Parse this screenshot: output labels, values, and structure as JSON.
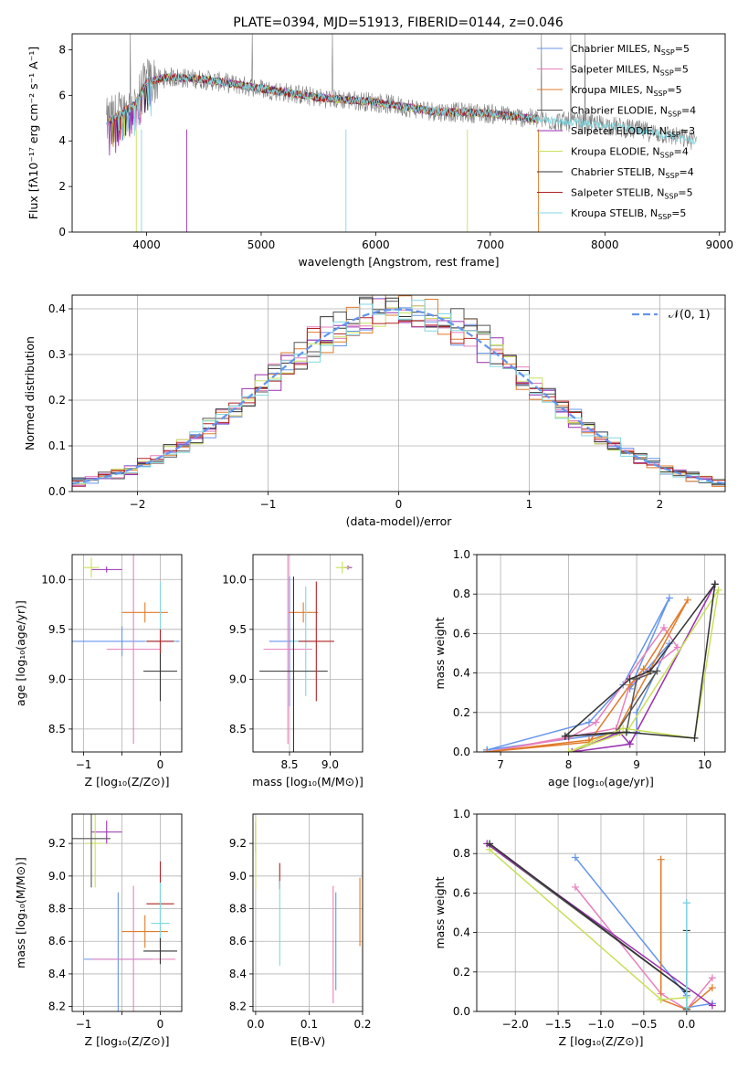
{
  "title": "PLATE=0394, MJD=51913, FIBERID=0144, z=0.046",
  "colors": {
    "c1": "#6495ed",
    "c2": "#e87fbe",
    "c3": "#e07b2a",
    "c4": "#555555",
    "c5": "#9a2fb0",
    "c6": "#c7e05a",
    "c7": "#333333",
    "c8": "#b22222",
    "c9": "#80d8e0"
  },
  "chart_data": [
    {
      "id": "spectrum",
      "type": "line",
      "xlabel": "wavelength [Angstrom, rest frame]",
      "ylabel": "Flux [fλ10⁻¹⁷ erg cm⁻² s⁻¹ A⁻¹]",
      "xlim": [
        3350,
        9050
      ],
      "ylim": [
        0,
        8.7
      ],
      "xticks": [
        4000,
        5000,
        6000,
        7000,
        8000,
        9000
      ],
      "yticks": [
        0,
        2,
        4,
        6,
        8
      ],
      "legend_position": "top-right",
      "series": [
        {
          "name": "Chabrier MILES, N_SSP=5",
          "label_main": "Chabrier MILES, N",
          "label_sub": "SSP",
          "label_tail": "=5",
          "color": "#6495ed"
        },
        {
          "name": "Salpeter MILES, N_SSP=5",
          "label_main": "Salpeter MILES, N",
          "label_sub": "SSP",
          "label_tail": "=5",
          "color": "#e87fbe"
        },
        {
          "name": "Kroupa MILES, N_SSP=5",
          "label_main": "Kroupa MILES, N",
          "label_sub": "SSP",
          "label_tail": "=5",
          "color": "#e07b2a"
        },
        {
          "name": "Chabrier ELODIE, N_SSP=4",
          "label_main": "Chabrier ELODIE, N",
          "label_sub": "SSP",
          "label_tail": "=4",
          "color": "#555555"
        },
        {
          "name": "Salpeter ELODIE, N_SSP=3",
          "label_main": "Salpeter ELODIE, N",
          "label_sub": "SSP",
          "label_tail": "=3",
          "color": "#9a2fb0"
        },
        {
          "name": "Kroupa ELODIE, N_SSP=4",
          "label_main": "Kroupa ELODIE, N",
          "label_sub": "SSP",
          "label_tail": "=4",
          "color": "#c7e05a"
        },
        {
          "name": "Chabrier STELIB, N_SSP=4",
          "label_main": "Chabrier STELIB, N",
          "label_sub": "SSP",
          "label_tail": "=4",
          "color": "#333333"
        },
        {
          "name": "Salpeter STELIB, N_SSP=5",
          "label_main": "Salpeter STELIB, N",
          "label_sub": "SSP",
          "label_tail": "=5",
          "color": "#b22222"
        },
        {
          "name": "Kroupa STELIB, N_SSP=5",
          "label_main": "Kroupa STELIB, N",
          "label_sub": "SSP",
          "label_tail": "=5",
          "color": "#80d8e0"
        }
      ],
      "data_trend": {
        "x": [
          3650,
          3900,
          4000,
          4200,
          4500,
          5000,
          5500,
          6000,
          6500,
          7000,
          7500,
          8000,
          8500,
          8800
        ],
        "y": [
          4.8,
          5.6,
          6.6,
          6.8,
          6.7,
          6.3,
          5.9,
          5.7,
          5.3,
          5.2,
          4.9,
          4.7,
          4.3,
          4.0
        ]
      }
    },
    {
      "id": "residuals",
      "type": "histogram",
      "xlabel": "(data-model)/error",
      "ylabel": "Normed distribution",
      "xlim": [
        -2.5,
        2.5
      ],
      "ylim": [
        0,
        0.43
      ],
      "xticks": [
        -2,
        -1,
        0,
        1,
        2
      ],
      "yticks": [
        0.0,
        0.1,
        0.2,
        0.3,
        0.4
      ],
      "grid": true,
      "legend_position": "top-right",
      "curve_label": "𝒩(0, 1)",
      "bin_width": 0.1
    },
    {
      "id": "age-vs-z",
      "type": "scatter",
      "xlabel": "Z [log₁₀(Z/Z⊙)]",
      "ylabel": "age  [log₁₀(age/yr)]",
      "xlim": [
        -1.15,
        0.28
      ],
      "ylim": [
        8.27,
        10.25
      ],
      "xticks": [
        -1,
        -0.5,
        0
      ],
      "xticklabels": [
        "−1",
        "",
        "0"
      ],
      "yticks": [
        8.5,
        9.0,
        9.5,
        10.0
      ],
      "grid": true,
      "points": [
        {
          "x": -0.7,
          "y": 10.1,
          "xerr": 0.2,
          "yerr": 0.03,
          "color": "#9a2fb0"
        },
        {
          "x": -0.9,
          "y": 10.12,
          "xerr": 0.1,
          "yerr": 0.1,
          "color": "#c7e05a"
        },
        {
          "x": -0.5,
          "y": 9.38,
          "xerr": 0.75,
          "yerr": 0.15,
          "color": "#6495ed"
        },
        {
          "x": -0.35,
          "y": 9.3,
          "xerr": 0.35,
          "yerr": 0.95,
          "color": "#e87fbe"
        },
        {
          "x": -0.2,
          "y": 9.67,
          "xerr": 0.3,
          "yerr": 0.1,
          "color": "#e07b2a"
        },
        {
          "x": 0.0,
          "y": 9.38,
          "xerr": 0.2,
          "yerr": 0.6,
          "color": "#80d8e0"
        },
        {
          "x": 0.0,
          "y": 9.08,
          "xerr": 0.22,
          "yerr": 0.3,
          "color": "#333333"
        },
        {
          "x": 0.0,
          "y": 9.38,
          "xerr": 0.18,
          "yerr": 0.12,
          "color": "#b22222"
        }
      ]
    },
    {
      "id": "age-vs-mass",
      "type": "scatter",
      "xlabel": "mass [log₁₀(M/M⊙)]",
      "xlim": [
        8.05,
        9.4
      ],
      "ylim": [
        8.27,
        10.25
      ],
      "xticks": [
        8.5,
        9.0
      ],
      "yticks": [
        8.5,
        9.0,
        9.5,
        10.0
      ],
      "grid": true,
      "points": [
        {
          "x": 9.22,
          "y": 10.12,
          "xerr": 0.05,
          "yerr": 0.02,
          "color": "#9a2fb0"
        },
        {
          "x": 9.15,
          "y": 10.12,
          "xerr": 0.08,
          "yerr": 0.06,
          "color": "#c7e05a"
        },
        {
          "x": 8.5,
          "y": 9.38,
          "xerr": 0.25,
          "yerr": 0.65,
          "color": "#6495ed"
        },
        {
          "x": 8.48,
          "y": 9.3,
          "xerr": 0.3,
          "yerr": 0.95,
          "color": "#e87fbe"
        },
        {
          "x": 8.67,
          "y": 9.67,
          "xerr": 0.18,
          "yerr": 0.1,
          "color": "#e07b2a"
        },
        {
          "x": 8.7,
          "y": 9.38,
          "xerr": 0.18,
          "yerr": 0.55,
          "color": "#80d8e0"
        },
        {
          "x": 8.55,
          "y": 9.08,
          "xerr": 0.42,
          "yerr": 0.95,
          "color": "#333333"
        },
        {
          "x": 8.83,
          "y": 9.38,
          "xerr": 0.22,
          "yerr": 0.6,
          "color": "#b22222"
        }
      ]
    },
    {
      "id": "weight-vs-age",
      "type": "line",
      "xlabel": "age  [log₁₀(age/yr)]",
      "ylabel": "mass weight",
      "xlim": [
        6.65,
        10.3
      ],
      "ylim": [
        0,
        1.0
      ],
      "xticks": [
        7,
        8,
        9,
        10
      ],
      "yticks": [
        0.0,
        0.2,
        0.4,
        0.6,
        0.8,
        1.0
      ],
      "grid": true,
      "series": [
        {
          "color": "#6495ed",
          "x": [
            6.8,
            8.3,
            8.8,
            9.48,
            8.9,
            9.48,
            9.0,
            9.0,
            8.3,
            6.8
          ],
          "y": [
            0.01,
            0.15,
            0.34,
            0.78,
            0.32,
            0.55,
            0.2,
            0.1,
            0.08,
            0.01
          ]
        },
        {
          "color": "#e87fbe",
          "x": [
            6.8,
            8.0,
            8.4,
            9.4,
            9.6,
            8.9,
            8.7,
            6.8
          ],
          "y": [
            0.0,
            0.07,
            0.15,
            0.63,
            0.53,
            0.34,
            0.12,
            0.0
          ]
        },
        {
          "color": "#e07b2a",
          "x": [
            6.8,
            8.3,
            8.7,
            9.75,
            9.1,
            8.9,
            8.3,
            6.8
          ],
          "y": [
            0.0,
            0.06,
            0.1,
            0.77,
            0.42,
            0.34,
            0.05,
            0.0
          ]
        },
        {
          "color": "#555555",
          "x": [
            8.0,
            8.7,
            9.3,
            9.0,
            8.85,
            8.0
          ],
          "y": [
            0.08,
            0.1,
            0.41,
            0.37,
            0.1,
            0.08
          ]
        },
        {
          "color": "#9a2fb0",
          "x": [
            8.05,
            8.75,
            8.9,
            10.15,
            8.9,
            8.05
          ],
          "y": [
            0.0,
            0.1,
            0.04,
            0.85,
            0.04,
            0.0
          ]
        },
        {
          "color": "#c7e05a",
          "x": [
            8.0,
            8.8,
            9.85,
            10.2,
            8.85,
            8.0
          ],
          "y": [
            0.0,
            0.12,
            0.07,
            0.82,
            0.1,
            0.0
          ]
        },
        {
          "color": "#333333",
          "x": [
            7.95,
            8.85,
            9.85,
            10.15,
            9.2,
            8.9,
            7.95
          ],
          "y": [
            0.08,
            0.1,
            0.07,
            0.85,
            0.41,
            0.37,
            0.08
          ]
        }
      ]
    },
    {
      "id": "mass-vs-z",
      "type": "scatter",
      "xlabel": "Z [log₁₀(Z/Z⊙)]",
      "ylabel": "mass [log₁₀(M/M⊙)]",
      "xlim": [
        -1.15,
        0.28
      ],
      "ylim": [
        8.17,
        9.38
      ],
      "xticks": [
        -1,
        -0.5,
        0
      ],
      "xticklabels": [
        "−1",
        "",
        "0"
      ],
      "yticks": [
        8.2,
        8.4,
        8.6,
        8.8,
        9.0,
        9.2
      ],
      "grid": true,
      "points": [
        {
          "x": -0.7,
          "y": 9.27,
          "xerr": 0.2,
          "yerr": 0.07,
          "color": "#9a2fb0"
        },
        {
          "x": -0.85,
          "y": 9.2,
          "xerr": 0.12,
          "yerr": 0.27,
          "color": "#c7e05a"
        },
        {
          "x": -0.9,
          "y": 9.23,
          "xerr": 0.25,
          "yerr": 0.3,
          "color": "#555555"
        },
        {
          "x": -0.55,
          "y": 8.49,
          "xerr": 0.45,
          "yerr": 0.41,
          "color": "#6495ed"
        },
        {
          "x": -0.35,
          "y": 8.49,
          "xerr": 0.55,
          "yerr": 0.45,
          "color": "#e87fbe"
        },
        {
          "x": -0.2,
          "y": 8.66,
          "xerr": 0.3,
          "yerr": 0.1,
          "color": "#e07b2a"
        },
        {
          "x": 0.0,
          "y": 8.83,
          "xerr": 0.18,
          "yerr": 0.26,
          "color": "#b22222"
        },
        {
          "x": 0.0,
          "y": 8.71,
          "xerr": 0.12,
          "yerr": 0.25,
          "color": "#80d8e0"
        },
        {
          "x": 0.0,
          "y": 8.54,
          "xerr": 0.22,
          "yerr": 0.08,
          "color": "#333333"
        }
      ]
    },
    {
      "id": "mass-vs-ebv",
      "type": "scatter",
      "xlabel": "E(B-V)",
      "xlim": [
        -0.005,
        0.2
      ],
      "ylim": [
        8.17,
        9.38
      ],
      "xticks": [
        0.0,
        0.1,
        0.2
      ],
      "yticks": [
        8.2,
        8.4,
        8.6,
        8.8,
        9.0,
        9.2
      ],
      "grid": true,
      "points": [
        {
          "x": 0.0,
          "y": 9.24,
          "xerr": 0.0,
          "yerr": 0.09,
          "color": "#9a2fb0"
        },
        {
          "x": 0.0,
          "y": 9.14,
          "xerr": 0.0,
          "yerr": 0.22,
          "color": "#c7e05a"
        },
        {
          "x": 0.045,
          "y": 9.0,
          "xerr": 0.0,
          "yerr": 0.08,
          "color": "#b22222"
        },
        {
          "x": 0.045,
          "y": 8.71,
          "xerr": 0.0,
          "yerr": 0.26,
          "color": "#80d8e0"
        },
        {
          "x": 0.145,
          "y": 8.58,
          "xerr": 0.0,
          "yerr": 0.36,
          "color": "#e87fbe"
        },
        {
          "x": 0.15,
          "y": 8.6,
          "xerr": 0.0,
          "yerr": 0.3,
          "color": "#6495ed"
        },
        {
          "x": 0.195,
          "y": 8.78,
          "xerr": 0.0,
          "yerr": 0.21,
          "color": "#e07b2a"
        }
      ]
    },
    {
      "id": "weight-vs-z",
      "type": "line",
      "xlabel": "Z [log₁₀(Z/Z⊙)]",
      "ylabel": "mass weight",
      "xlim": [
        -2.45,
        0.45
      ],
      "ylim": [
        0,
        1.0
      ],
      "xticks": [
        -2.0,
        -1.5,
        -1.0,
        -0.5,
        0.0
      ],
      "xticklabels": [
        "−2.0",
        "−1.5",
        "−1.0",
        "−0.5",
        "0.0"
      ],
      "yticks": [
        0.0,
        0.2,
        0.4,
        0.6,
        0.8,
        1.0
      ],
      "grid": true,
      "series": [
        {
          "color": "#6495ed",
          "x": [
            -1.3,
            0.0,
            0.0,
            0.0,
            0.3
          ],
          "y": [
            0.78,
            0.08,
            0.55,
            0.02,
            0.04
          ]
        },
        {
          "color": "#e87fbe",
          "x": [
            -1.3,
            -0.3,
            0.0,
            0.3
          ],
          "y": [
            0.63,
            0.09,
            0.01,
            0.17
          ]
        },
        {
          "color": "#e07b2a",
          "x": [
            -0.3,
            -0.3,
            0.0,
            0.3
          ],
          "y": [
            0.77,
            0.06,
            0.01,
            0.12
          ]
        },
        {
          "color": "#555555",
          "x": [
            -2.3,
            0.0,
            0.0
          ],
          "y": [
            0.84,
            0.1,
            0.01
          ]
        },
        {
          "color": "#9a2fb0",
          "x": [
            -2.33,
            0.3
          ],
          "y": [
            0.85,
            0.03
          ]
        },
        {
          "color": "#c7e05a",
          "x": [
            -2.3,
            -0.3,
            0.0
          ],
          "y": [
            0.82,
            0.06,
            0.07
          ]
        },
        {
          "color": "#333333",
          "x": [
            -2.3,
            0.0,
            0.0,
            0.0
          ],
          "y": [
            0.85,
            0.1,
            0.41,
            0.02
          ]
        },
        {
          "color": "#80d8e0",
          "x": [
            0.0,
            0.0
          ],
          "y": [
            0.02,
            0.55
          ]
        }
      ]
    }
  ]
}
